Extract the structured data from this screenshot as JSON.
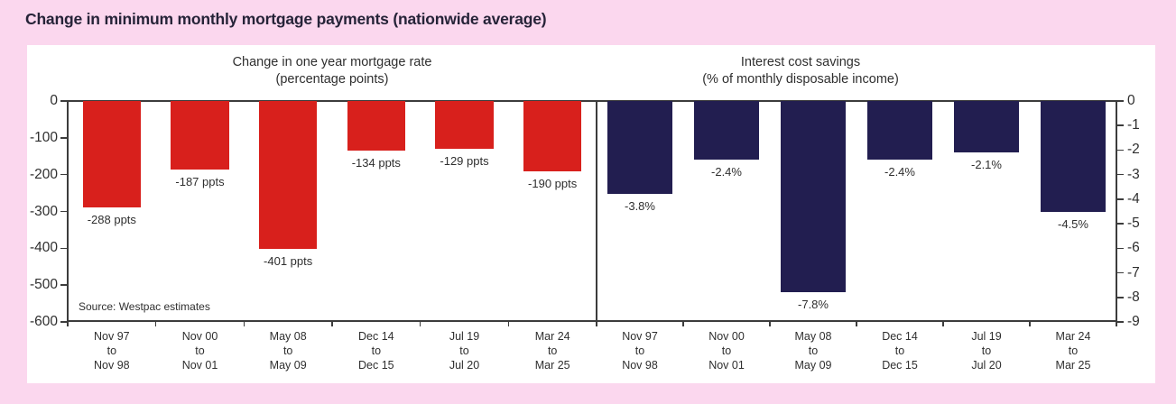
{
  "page_title": "Change in minimum monthly mortgage payments (nationwide average)",
  "source_note": "Source: Westpac estimates",
  "colors": {
    "background": "#fbd7ee",
    "panel": "#ffffff",
    "title_text": "#262338",
    "chart_text": "#2f2f2f",
    "axis_line": "#3c3c3c",
    "left_bar": "#d8201c",
    "right_bar": "#221e50"
  },
  "chart_data": [
    {
      "type": "bar",
      "title": "Change in one year mortgage rate",
      "subtitle": "(percentage points)",
      "xlabel": "",
      "ylabel": "",
      "ylim": [
        -600,
        0
      ],
      "yticks": [
        0,
        -100,
        -200,
        -300,
        -400,
        -500,
        -600
      ],
      "yaxis_side": "left",
      "grid": false,
      "legend": "none",
      "categories": [
        [
          "Nov 97",
          "to",
          "Nov 98"
        ],
        [
          "Nov 00",
          "to",
          "Nov 01"
        ],
        [
          "May 08",
          "to",
          "May 09"
        ],
        [
          "Dec 14",
          "to",
          "Dec 15"
        ],
        [
          "Jul 19",
          "to",
          "Jul 20"
        ],
        [
          "Mar 24",
          "to",
          "Mar 25"
        ]
      ],
      "values": [
        -288,
        -187,
        -401,
        -134,
        -129,
        -190
      ],
      "data_labels": [
        "-288 ppts",
        "-187 ppts",
        "-401 ppts",
        "-134 ppts",
        "-129 ppts",
        "-190 ppts"
      ],
      "bar_color": "#d8201c"
    },
    {
      "type": "bar",
      "title": "Interest cost savings",
      "subtitle": "(% of monthly disposable income)",
      "xlabel": "",
      "ylabel": "",
      "ylim": [
        -9,
        0
      ],
      "yticks": [
        0,
        -1,
        -2,
        -3,
        -4,
        -5,
        -6,
        -7,
        -8,
        -9
      ],
      "yaxis_side": "right",
      "grid": false,
      "legend": "none",
      "categories": [
        [
          "Nov 97",
          "to",
          "Nov 98"
        ],
        [
          "Nov 00",
          "to",
          "Nov 01"
        ],
        [
          "May 08",
          "to",
          "May 09"
        ],
        [
          "Dec 14",
          "to",
          "Dec 15"
        ],
        [
          "Jul 19",
          "to",
          "Jul 20"
        ],
        [
          "Mar 24",
          "to",
          "Mar 25"
        ]
      ],
      "values": [
        -3.8,
        -2.4,
        -7.8,
        -2.4,
        -2.1,
        -4.5
      ],
      "data_labels": [
        "-3.8%",
        "-2.4%",
        "-7.8%",
        "-2.4%",
        "-2.1%",
        "-4.5%"
      ],
      "bar_color": "#221e50"
    }
  ]
}
